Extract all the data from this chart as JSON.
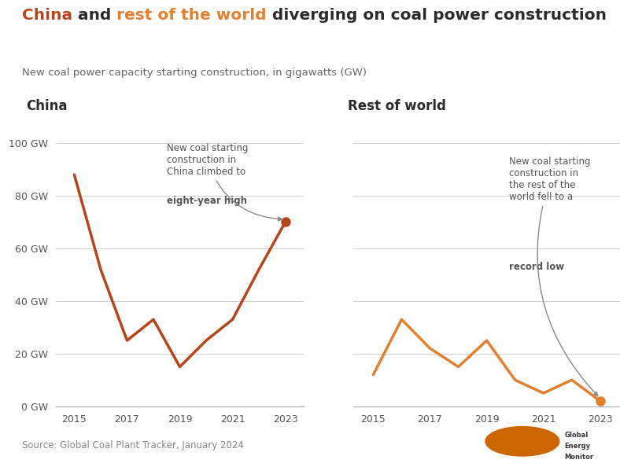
{
  "china_years": [
    2015,
    2016,
    2017,
    2018,
    2019,
    2020,
    2021,
    2022,
    2023
  ],
  "china_values": [
    88,
    52,
    25,
    33,
    15,
    25,
    33,
    52,
    70
  ],
  "row_years": [
    2015,
    2016,
    2017,
    2018,
    2019,
    2020,
    2021,
    2022,
    2023
  ],
  "row_values": [
    12,
    33,
    22,
    15,
    25,
    10,
    5,
    10,
    2
  ],
  "china_color": "#b5451b",
  "row_color": "#e08030",
  "title_china_color": "#b5451b",
  "title_row_color": "#e08030",
  "title_black_color": "#2b2b2b",
  "background_color": "#ffffff",
  "grid_color": "#d0d0d0",
  "ylim": [
    0,
    110
  ],
  "yticks": [
    0,
    20,
    40,
    60,
    80,
    100
  ],
  "ytick_labels": [
    "0 GW",
    "20 GW",
    "40 GW",
    "60 GW",
    "80 GW",
    "100 GW"
  ],
  "xticks": [
    2015,
    2017,
    2019,
    2021,
    2023
  ],
  "subtitle": "New coal power capacity starting construction, in gigawatts (GW)",
  "source": "Source: Global Coal Plant Tracker, January 2024",
  "china_panel_title": "China",
  "row_panel_title": "Rest of world",
  "annotation_color": "#555555",
  "arrow_color": "#888888"
}
